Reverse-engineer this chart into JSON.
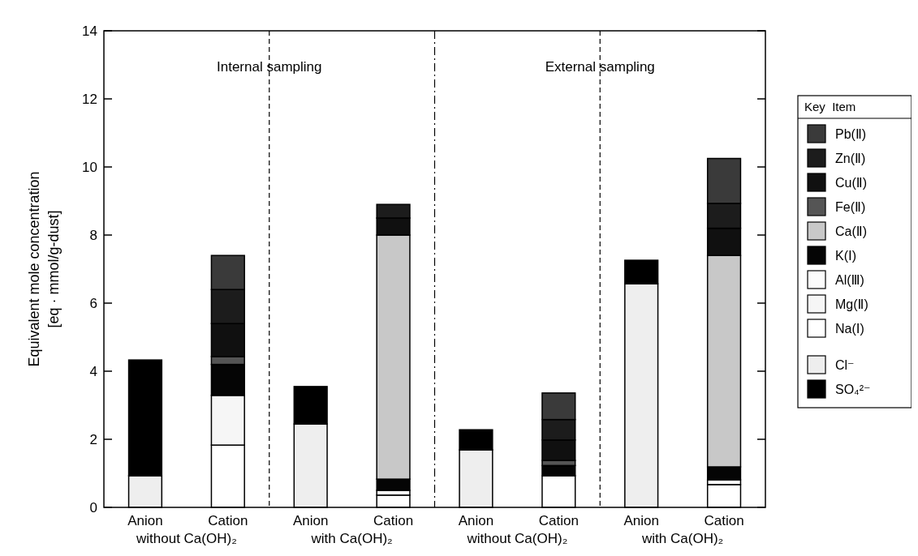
{
  "chart_data": {
    "type": "bar",
    "stacked": true,
    "ylabel": "Equivalent mole concentration\n[eq · mmol/g-dust]",
    "legend_title": "Key  Item",
    "legend": "right",
    "grid": false,
    "categories": [
      "Anion",
      "Cation",
      "Anion",
      "Cation",
      "Anion",
      "Cation",
      "Anion",
      "Cation"
    ],
    "ylim": [
      0,
      14
    ],
    "yticks": [
      0,
      2,
      4,
      6,
      8,
      10,
      12,
      14
    ],
    "annotations": [
      "Internal sampling",
      "External sampling",
      "without Ca(OH)₂",
      "with Ca(OH)₂",
      "without Ca(OH)₂",
      "with Ca(OH)₂"
    ],
    "series": [
      {
        "name": "Cl⁻",
        "color": "#eeeeee",
        "values": [
          0.93,
          null,
          2.45,
          null,
          1.69,
          null,
          6.57,
          null
        ]
      },
      {
        "name": "SO₄²⁻",
        "color": "#000000",
        "values": [
          3.4,
          null,
          1.1,
          null,
          0.59,
          null,
          0.69,
          null
        ]
      },
      {
        "name": "Na(Ⅰ)",
        "color": "#ffffff",
        "values": [
          null,
          1.83,
          null,
          0.36,
          null,
          0.93,
          null,
          0.67
        ]
      },
      {
        "name": "Mg(Ⅱ)",
        "color": "#f6f6f6",
        "values": [
          null,
          1.46,
          null,
          null,
          null,
          null,
          null,
          null
        ]
      },
      {
        "name": "Al(Ⅲ)",
        "color": "#fcfcfc",
        "values": [
          null,
          null,
          null,
          0.14,
          null,
          null,
          null,
          0.14
        ]
      },
      {
        "name": "K(Ⅰ)",
        "color": "#050505",
        "values": [
          null,
          0.91,
          null,
          0.33,
          null,
          0.3,
          null,
          0.38
        ]
      },
      {
        "name": "Ca(Ⅱ)",
        "color": "#c8c8c8",
        "values": [
          null,
          null,
          null,
          7.17,
          null,
          null,
          null,
          6.21
        ]
      },
      {
        "name": "Fe(Ⅱ)",
        "color": "#555555",
        "values": [
          null,
          0.23,
          null,
          null,
          null,
          0.15,
          null,
          null
        ]
      },
      {
        "name": "Cu(Ⅱ)",
        "color": "#101010",
        "values": [
          null,
          0.97,
          null,
          0.5,
          null,
          0.6,
          null,
          0.8
        ]
      },
      {
        "name": "Zn(Ⅱ)",
        "color": "#1c1c1c",
        "values": [
          null,
          1.0,
          null,
          0.4,
          null,
          0.6,
          null,
          0.73
        ]
      },
      {
        "name": "Pb(Ⅱ)",
        "color": "#3a3a3a",
        "values": [
          null,
          1.0,
          null,
          null,
          null,
          0.78,
          null,
          1.32
        ]
      }
    ]
  }
}
